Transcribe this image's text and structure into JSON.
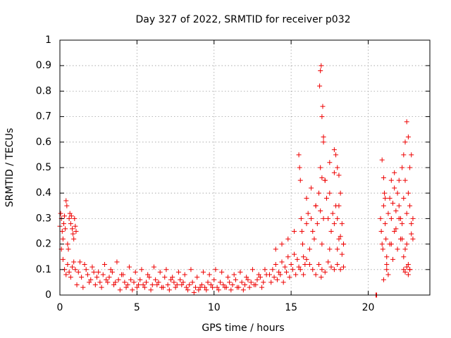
{
  "chart_data": {
    "type": "scatter",
    "title": "Day 327 of 2022, SRMTID for receiver p032",
    "xlabel": "GPS time / hours",
    "ylabel": "SRMTID / TECUs",
    "xlim": [
      0,
      24
    ],
    "ylim": [
      0,
      1
    ],
    "grid": true,
    "x_ticks": [
      0,
      5,
      10,
      15,
      20
    ],
    "x_tick_labels": [
      "0",
      "5",
      "10",
      "15",
      "20"
    ],
    "y_ticks": [
      0,
      0.1,
      0.2,
      0.3,
      0.4,
      0.5,
      0.6,
      0.7,
      0.8,
      0.9,
      1
    ],
    "y_tick_labels": [
      "0",
      "0.1",
      "0.2",
      "0.3",
      "0.4",
      "0.5",
      "0.6",
      "0.7",
      "0.8",
      "0.9",
      "1"
    ],
    "marker": "+",
    "color": "#ee0000",
    "series": [
      {
        "name": "p032",
        "x": [
          0.0,
          0.05,
          0.1,
          0.15,
          0.2,
          0.25,
          0.3,
          0.35,
          0.4,
          0.45,
          0.5,
          0.55,
          0.6,
          0.65,
          0.7,
          0.75,
          0.8,
          0.85,
          0.9,
          0.95,
          1.0,
          1.05,
          0.1,
          0.2,
          0.3,
          0.4,
          0.5,
          0.6,
          0.7,
          0.8,
          0.9,
          1.0,
          1.2,
          1.4,
          1.6,
          1.8,
          2.0,
          2.2,
          2.4,
          2.6,
          2.8,
          3.0,
          3.2,
          3.4,
          3.6,
          3.8,
          4.0,
          4.2,
          4.4,
          4.6,
          4.8,
          5.0,
          5.2,
          5.4,
          5.6,
          5.8,
          6.0,
          6.2,
          6.4,
          6.6,
          6.8,
          7.0,
          7.2,
          7.4,
          7.6,
          7.8,
          8.0,
          8.2,
          8.4,
          8.6,
          8.8,
          9.0,
          9.2,
          9.4,
          9.6,
          9.8,
          10.0,
          10.2,
          10.4,
          10.6,
          10.8,
          11.0,
          11.2,
          11.4,
          11.6,
          11.8,
          12.0,
          12.2,
          12.4,
          12.6,
          12.8,
          13.0,
          13.2,
          13.4,
          1.3,
          1.7,
          2.1,
          2.5,
          2.9,
          3.3,
          3.7,
          4.1,
          4.5,
          4.9,
          5.3,
          5.7,
          6.1,
          6.5,
          6.9,
          7.3,
          7.7,
          8.1,
          8.5,
          8.9,
          9.3,
          9.7,
          10.1,
          10.5,
          10.9,
          11.3,
          11.7,
          12.1,
          12.5,
          12.9,
          13.3,
          1.1,
          1.5,
          1.9,
          2.3,
          2.7,
          3.1,
          3.5,
          3.9,
          4.3,
          4.7,
          5.1,
          5.5,
          5.9,
          6.3,
          6.7,
          7.1,
          7.5,
          7.9,
          8.3,
          8.7,
          9.1,
          9.5,
          9.9,
          10.3,
          10.7,
          11.1,
          11.5,
          11.9,
          12.3,
          12.7,
          13.1,
          13.6,
          13.8,
          14.0,
          14.2,
          14.4,
          14.6,
          14.8,
          15.0,
          15.2,
          15.4,
          13.7,
          13.9,
          14.1,
          14.3,
          14.5,
          14.7,
          14.9,
          15.1,
          15.3,
          15.5,
          14.0,
          14.4,
          14.8,
          15.2,
          15.5,
          15.55,
          15.6,
          15.65,
          15.7,
          15.75,
          15.8,
          15.9,
          16.0,
          16.1,
          16.2,
          16.3,
          16.4,
          16.5,
          16.6,
          16.7,
          16.8,
          16.9,
          17.0,
          17.1,
          17.2,
          17.3,
          17.4,
          17.5,
          17.6,
          17.7,
          17.8,
          17.9,
          18.0,
          18.1,
          18.2,
          18.3,
          18.4,
          15.6,
          15.8,
          16.0,
          16.2,
          16.4,
          16.6,
          16.8,
          17.0,
          17.2,
          17.4,
          17.6,
          17.8,
          18.0,
          18.2,
          18.4,
          16.0,
          16.3,
          16.6,
          16.9,
          17.2,
          17.5,
          17.8,
          18.1,
          16.85,
          16.9,
          16.95,
          17.0,
          17.05,
          17.1,
          17.1,
          17.0,
          16.95,
          17.5,
          17.8,
          17.9,
          18.0,
          18.1,
          18.0,
          18.2,
          18.4,
          18.3,
          20.5,
          20.55,
          20.8,
          20.85,
          20.9,
          20.95,
          21.0,
          21.05,
          21.1,
          21.15,
          21.2,
          21.3,
          21.4,
          21.5,
          21.6,
          21.7,
          21.8,
          21.9,
          22.0,
          22.1,
          22.2,
          22.3,
          22.4,
          22.5,
          22.6,
          22.7,
          22.8,
          22.9,
          20.9,
          21.0,
          21.1,
          21.2,
          21.3,
          21.5,
          21.7,
          21.9,
          22.1,
          22.3,
          22.5,
          22.7,
          22.9,
          21.0,
          21.2,
          21.4,
          21.6,
          21.8,
          22.0,
          22.2,
          22.4,
          22.6,
          22.8,
          22.0,
          22.2,
          22.3,
          22.4,
          22.5,
          22.6,
          22.7,
          22.8,
          21.5,
          21.7,
          22.3,
          22.4,
          22.5,
          22.6,
          22.7
        ],
        "y": [
          0.27,
          0.32,
          0.3,
          0.25,
          0.22,
          0.28,
          0.31,
          0.26,
          0.37,
          0.35,
          0.2,
          0.18,
          0.3,
          0.32,
          0.28,
          0.31,
          0.26,
          0.24,
          0.22,
          0.3,
          0.27,
          0.25,
          0.18,
          0.14,
          0.1,
          0.08,
          0.12,
          0.09,
          0.07,
          0.11,
          0.13,
          0.1,
          0.09,
          0.07,
          0.12,
          0.08,
          0.06,
          0.09,
          0.07,
          0.05,
          0.08,
          0.06,
          0.07,
          0.09,
          0.05,
          0.06,
          0.08,
          0.05,
          0.04,
          0.06,
          0.05,
          0.03,
          0.06,
          0.04,
          0.05,
          0.07,
          0.04,
          0.06,
          0.05,
          0.03,
          0.07,
          0.04,
          0.06,
          0.05,
          0.04,
          0.06,
          0.05,
          0.03,
          0.04,
          0.05,
          0.03,
          0.02,
          0.04,
          0.03,
          0.05,
          0.04,
          0.06,
          0.03,
          0.05,
          0.04,
          0.03,
          0.05,
          0.04,
          0.06,
          0.03,
          0.05,
          0.04,
          0.06,
          0.05,
          0.04,
          0.06,
          0.07,
          0.05,
          0.08,
          0.13,
          0.1,
          0.11,
          0.09,
          0.12,
          0.1,
          0.13,
          0.08,
          0.11,
          0.09,
          0.1,
          0.08,
          0.11,
          0.09,
          0.1,
          0.07,
          0.09,
          0.08,
          0.1,
          0.07,
          0.09,
          0.08,
          0.1,
          0.09,
          0.07,
          0.08,
          0.09,
          0.07,
          0.1,
          0.08,
          0.1,
          0.04,
          0.03,
          0.05,
          0.04,
          0.03,
          0.05,
          0.04,
          0.02,
          0.03,
          0.02,
          0.04,
          0.03,
          0.02,
          0.04,
          0.03,
          0.02,
          0.03,
          0.04,
          0.02,
          0.01,
          0.03,
          0.02,
          0.03,
          0.02,
          0.03,
          0.02,
          0.03,
          0.02,
          0.03,
          0.04,
          0.03,
          0.08,
          0.1,
          0.12,
          0.09,
          0.13,
          0.11,
          0.15,
          0.12,
          0.16,
          0.14,
          0.05,
          0.07,
          0.06,
          0.08,
          0.05,
          0.09,
          0.07,
          0.1,
          0.08,
          0.11,
          0.18,
          0.2,
          0.22,
          0.25,
          0.55,
          0.5,
          0.45,
          0.3,
          0.25,
          0.2,
          0.15,
          0.12,
          0.28,
          0.32,
          0.18,
          0.3,
          0.25,
          0.22,
          0.35,
          0.28,
          0.4,
          0.33,
          0.2,
          0.3,
          0.45,
          0.38,
          0.3,
          0.18,
          0.25,
          0.32,
          0.28,
          0.35,
          0.3,
          0.22,
          0.4,
          0.28,
          0.2,
          0.1,
          0.08,
          0.14,
          0.12,
          0.1,
          0.08,
          0.12,
          0.1,
          0.09,
          0.13,
          0.11,
          0.1,
          0.12,
          0.1,
          0.11,
          0.38,
          0.42,
          0.35,
          0.5,
          0.45,
          0.4,
          0.48,
          0.35,
          0.82,
          0.88,
          0.9,
          0.7,
          0.74,
          0.6,
          0.62,
          0.46,
          0.07,
          0.52,
          0.57,
          0.55,
          0.5,
          0.47,
          0.18,
          0.23,
          0.2,
          0.16,
          0.0,
          0.0,
          0.3,
          0.25,
          0.2,
          0.18,
          0.35,
          0.4,
          0.28,
          0.22,
          0.15,
          0.32,
          0.38,
          0.3,
          0.36,
          0.42,
          0.33,
          0.4,
          0.35,
          0.3,
          0.28,
          0.38,
          0.45,
          0.32,
          0.4,
          0.35,
          0.28,
          0.3,
          0.53,
          0.46,
          0.38,
          0.12,
          0.08,
          0.2,
          0.25,
          0.18,
          0.22,
          0.15,
          0.2,
          0.1,
          0.22,
          0.06,
          0.1,
          0.2,
          0.14,
          0.26,
          0.3,
          0.22,
          0.18,
          0.12,
          0.24,
          0.45,
          0.5,
          0.55,
          0.6,
          0.68,
          0.62,
          0.5,
          0.55,
          0.45,
          0.48,
          0.1,
          0.09,
          0.11,
          0.08,
          0.1
        ]
      }
    ]
  }
}
